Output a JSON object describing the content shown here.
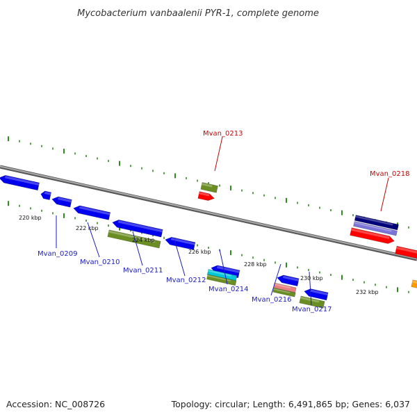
{
  "title": "Mycobacterium vanbaalenii PYR-1, complete genome",
  "footer": {
    "accession": "Accession: NC_008726",
    "summary": "Topology: circular; Length: 6,491,865 bp; Genes: 6,037"
  },
  "colors": {
    "backbone": "#8a8a8a",
    "tick": "#2e8b1e",
    "label_top": "#cc0000",
    "label_bottom": "#1a1acc",
    "forward_cds": "#ff0000",
    "reverse_cds": "#0000ee",
    "olive": "#6b8e23",
    "cyan": "#00c8d8",
    "pink": "#e88080",
    "navy": "#00007a",
    "lavender": "#7b74d8",
    "orange": "#ff9a00"
  },
  "scale_labels": [
    "220 kbp",
    "222 kbp",
    "224 kbp",
    "226 kbp",
    "228 kbp",
    "230 kbp",
    "232 kbp"
  ],
  "gene_labels_top": [
    "Mvan_0213",
    "Mvan_0218"
  ],
  "gene_labels_bottom": [
    "Mvan_0209",
    "Mvan_0210",
    "Mvan_0211",
    "Mvan_0212",
    "Mvan_0214",
    "Mvan_0216",
    "Mvan_0217"
  ]
}
